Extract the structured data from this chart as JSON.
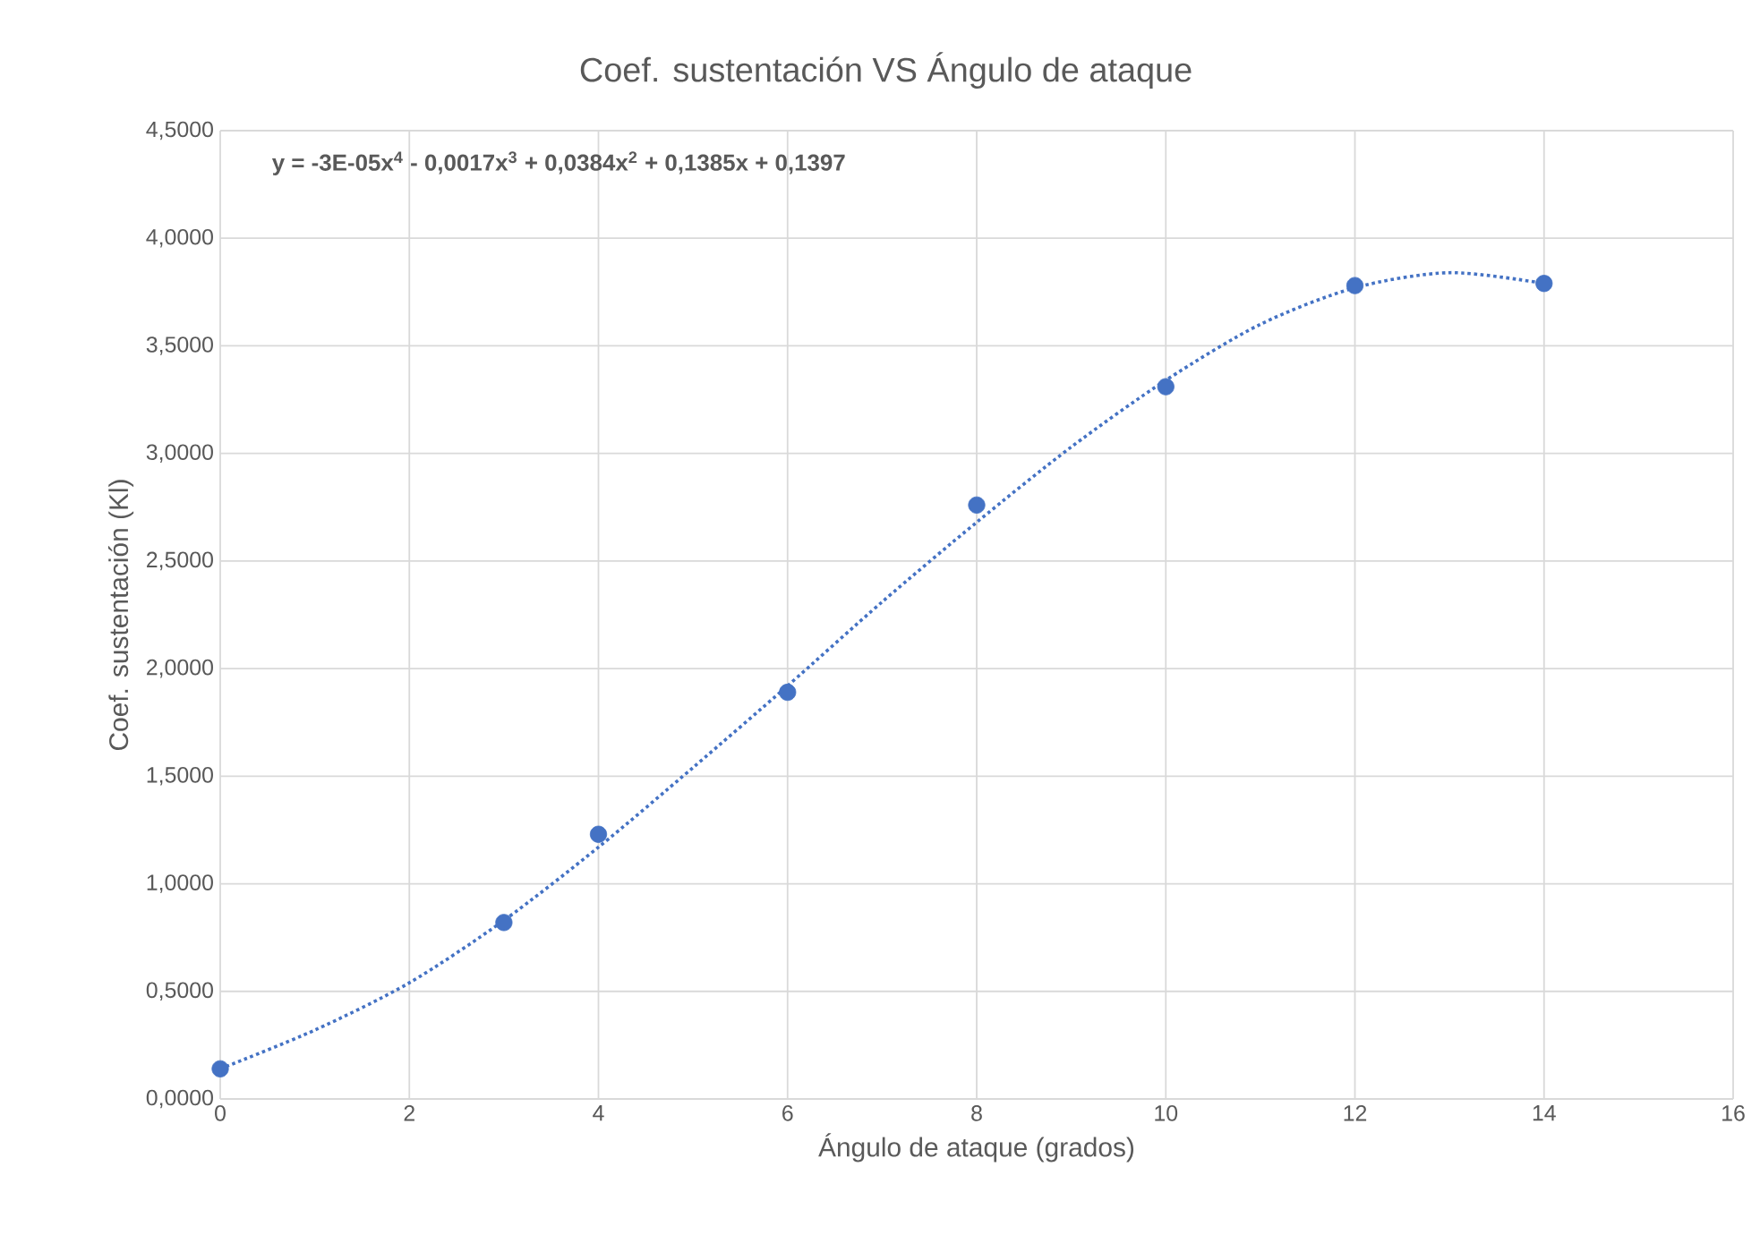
{
  "chart_data": {
    "type": "scatter",
    "title": "Coef. sustentación VS Ángulo de ataque",
    "xlabel": "Ángulo de ataque (grados)",
    "ylabel": "Coef. sustentación (Kl)",
    "annotations": [
      "y = -3E-05x$^{4}$ - 0,0017x$^{3}$ + 0,0384x$^{2}$ + 0,1385x + 0,1397"
    ],
    "series": [
      {
        "color": "#4472c4",
        "marker": "circle",
        "x": [
          0,
          3,
          4,
          6,
          8,
          10,
          12,
          14
        ],
        "values": [
          0.14,
          0.82,
          1.23,
          1.89,
          2.76,
          3.31,
          3.78,
          3.79
        ]
      },
      {
        "type": "line",
        "color": "#4472c4",
        "line_style": "dotted",
        "x": [
          0,
          1,
          2,
          3,
          4,
          5,
          6,
          7,
          8,
          9,
          10,
          11,
          12,
          13,
          14
        ],
        "values": [
          0.14,
          0.32,
          0.54,
          0.83,
          1.17,
          1.54,
          1.92,
          2.31,
          2.68,
          3.03,
          3.34,
          3.6,
          3.77,
          3.84,
          3.79
        ]
      }
    ],
    "xlim": [
      0,
      16
    ],
    "ylim": [
      0,
      4.5
    ],
    "xticks": [
      0,
      2,
      4,
      6,
      8,
      10,
      12,
      14,
      16
    ],
    "yticks": [
      {
        "value": 0,
        "label": "0,0000"
      },
      {
        "value": 0.5,
        "label": "0,5000"
      },
      {
        "value": 1,
        "label": "1,0000"
      },
      {
        "value": 1.5,
        "label": "1,5000"
      },
      {
        "value": 2,
        "label": "2,0000"
      },
      {
        "value": 2.5,
        "label": "2,5000"
      },
      {
        "value": 3,
        "label": "3,0000"
      },
      {
        "value": 3.5,
        "label": "3,5000"
      },
      {
        "value": 4,
        "label": "4,0000"
      },
      {
        "value": 4.5,
        "label": "4,5000"
      }
    ],
    "grid": true
  }
}
